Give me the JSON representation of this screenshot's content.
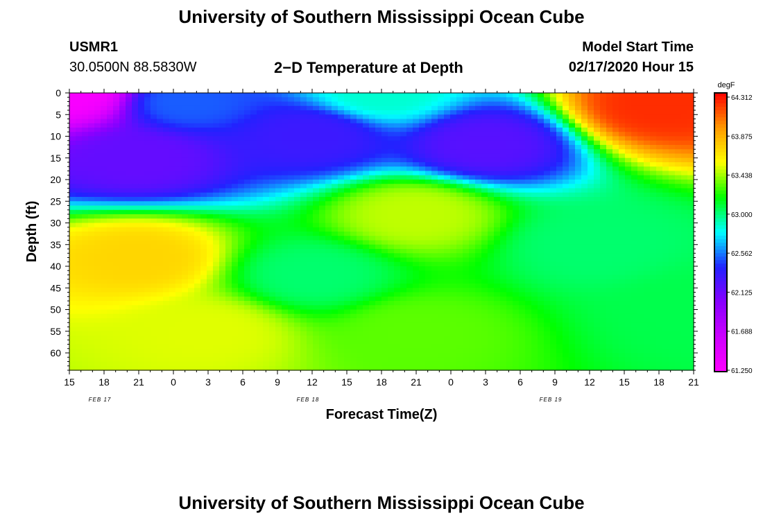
{
  "header": {
    "title": "University of Southern Mississippi Ocean Cube",
    "station": "USMR1",
    "coords": "30.0500N 88.5830W",
    "subtitle": "2−D Temperature at Depth",
    "start_label": "Model Start Time",
    "start_value": "02/17/2020 Hour 15"
  },
  "footer": {
    "title": "University of Southern Mississippi Ocean Cube"
  },
  "chart_data": {
    "type": "heatmap",
    "xlabel": "Forecast Time(Z)",
    "ylabel": "Depth (ft)",
    "x_ticks": [
      "15",
      "18",
      "21",
      "0",
      "3",
      "6",
      "9",
      "12",
      "15",
      "18",
      "21",
      "0",
      "3",
      "6",
      "9",
      "12",
      "15",
      "18",
      "21"
    ],
    "x_dates": [
      {
        "label": "FEB 17",
        "tick_index": 1
      },
      {
        "label": "FEB 18",
        "tick_index": 7
      },
      {
        "label": "FEB 19",
        "tick_index": 14
      }
    ],
    "y_ticks": [
      0,
      5,
      10,
      15,
      20,
      25,
      30,
      35,
      40,
      45,
      50,
      55,
      60
    ],
    "ylim": [
      0,
      64
    ],
    "x_hours_range": [
      0,
      54
    ],
    "colorbar": {
      "unit": "degF",
      "labels": [
        "64.312",
        "63.875",
        "63.438",
        "63.000",
        "62.562",
        "62.125",
        "61.688",
        "61.250"
      ],
      "min": 61.25,
      "max": 64.312
    },
    "colors": {
      "scale": [
        "#ff00ff",
        "#cc00ff",
        "#8800ff",
        "#2222ff",
        "#00ffff",
        "#00ff00",
        "#ffff00",
        "#ff9900",
        "#ff0000"
      ]
    },
    "field_features": [
      {
        "hour": 0,
        "depth": 0,
        "temp": 61.3
      },
      {
        "hour": 6,
        "depth": 15,
        "temp": 62.15
      },
      {
        "hour": 10,
        "depth": 2,
        "temp": 62.5
      },
      {
        "hour": 6,
        "depth": 38,
        "temp": 63.7
      },
      {
        "hour": 12,
        "depth": 55,
        "temp": 63.5
      },
      {
        "hour": 21,
        "depth": 42,
        "temp": 63.0
      },
      {
        "hour": 21,
        "depth": 10,
        "temp": 62.3
      },
      {
        "hour": 27,
        "depth": 0,
        "temp": 62.85
      },
      {
        "hour": 30,
        "depth": 28,
        "temp": 63.45
      },
      {
        "hour": 30,
        "depth": 55,
        "temp": 63.3
      },
      {
        "hour": 36,
        "depth": 12,
        "temp": 62.2
      },
      {
        "hour": 45,
        "depth": 35,
        "temp": 63.0
      },
      {
        "hour": 51,
        "depth": 3,
        "temp": 64.2
      },
      {
        "hour": 54,
        "depth": 50,
        "temp": 63.05
      }
    ]
  }
}
